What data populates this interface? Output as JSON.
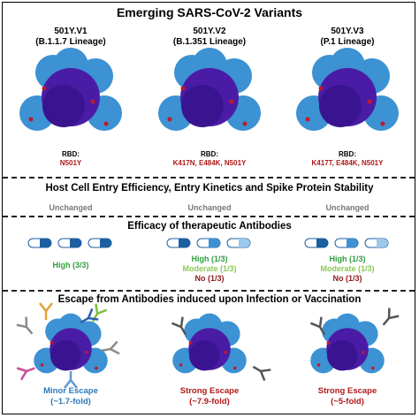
{
  "title": "Emerging SARS-CoV-2 Variants",
  "sections": [
    "Host Cell Entry Efficiency, Entry Kinetics and Spike Protein Stability",
    "Efficacy of therapeutic Antibodies",
    "Escape from Antibodies induced upon Infection or Vaccination"
  ],
  "variants": [
    {
      "name": "501Y.V1",
      "lineage": "(B.1.1.7 Lineage)",
      "rbd_label": "RBD:",
      "rbd": "N501Y",
      "entry": "Unchanged",
      "efficacy": [
        "High (3/3)"
      ],
      "escape": "Minor Escape",
      "fold": "(~1.7-fold)"
    },
    {
      "name": "501Y.V2",
      "lineage": "(B.1.351 Lineage)",
      "rbd_label": "RBD:",
      "rbd": "K417N, E484K, N501Y",
      "entry": "Unchanged",
      "efficacy": [
        "High (1/3)",
        "Moderate (1/3)",
        "No (1/3)"
      ],
      "escape": "Strong Escape",
      "fold": "(~7.9-fold)"
    },
    {
      "name": "501Y.V3",
      "lineage": "(P.1 Lineage)",
      "rbd_label": "RBD:",
      "rbd": "K417T, E484K, N501Y",
      "entry": "Unchanged",
      "efficacy": [
        "High (1/3)",
        "Moderate (1/3)",
        "No (1/3)"
      ],
      "escape": "Strong Escape",
      "fold": "(~5-fold)"
    }
  ]
}
